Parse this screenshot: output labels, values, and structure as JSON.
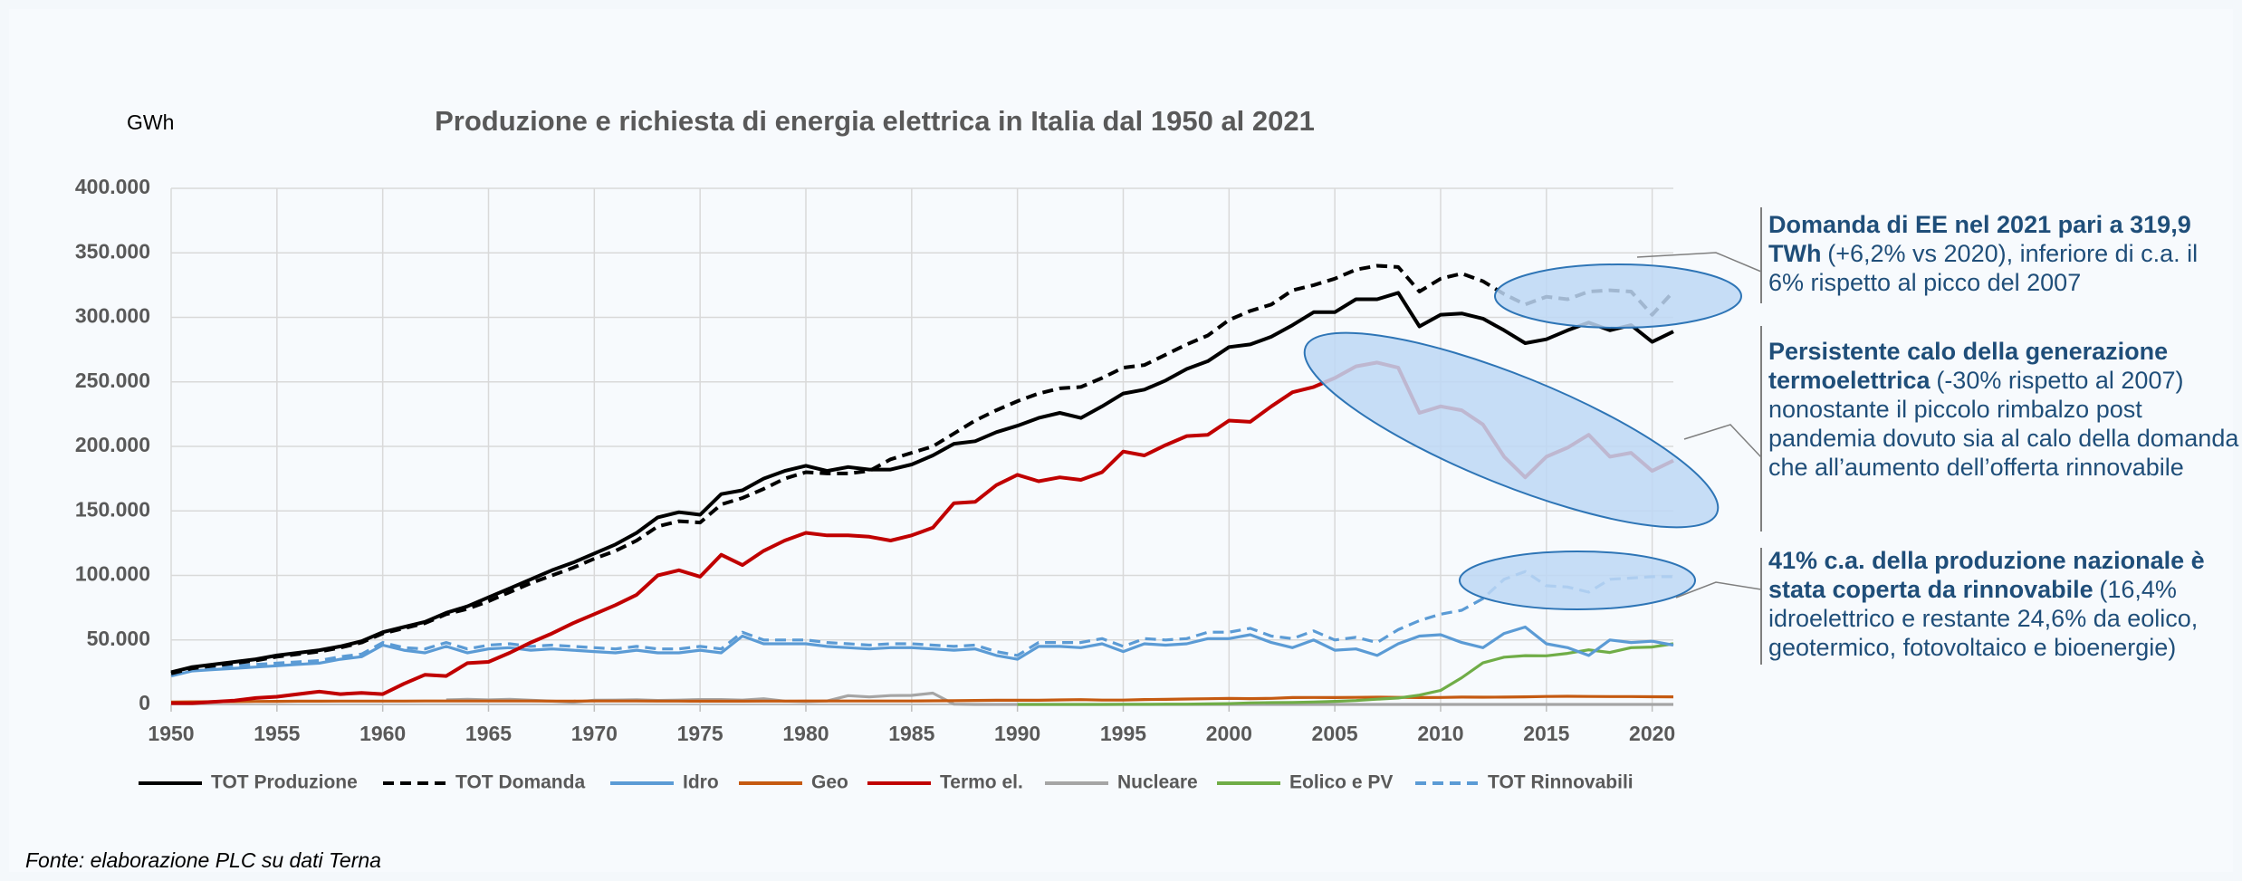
{
  "chart_data": {
    "type": "line",
    "title": "Produzione e richiesta di energia elettrica in Italia dal 1950 al 2021",
    "y_label": "GWh",
    "source": "Fonte: elaborazione PLC su dati Terna",
    "x": [
      1950,
      1951,
      1952,
      1953,
      1954,
      1955,
      1956,
      1957,
      1958,
      1959,
      1960,
      1961,
      1962,
      1963,
      1964,
      1965,
      1966,
      1967,
      1968,
      1969,
      1970,
      1971,
      1972,
      1973,
      1974,
      1975,
      1976,
      1977,
      1978,
      1979,
      1980,
      1981,
      1982,
      1983,
      1984,
      1985,
      1986,
      1987,
      1988,
      1989,
      1990,
      1991,
      1992,
      1993,
      1994,
      1995,
      1996,
      1997,
      1998,
      1999,
      2000,
      2001,
      2002,
      2003,
      2004,
      2005,
      2006,
      2007,
      2008,
      2009,
      2010,
      2011,
      2012,
      2013,
      2014,
      2015,
      2016,
      2017,
      2018,
      2019,
      2020,
      2021
    ],
    "xlim": [
      1950,
      2021
    ],
    "xticks": [
      1950,
      1955,
      1960,
      1965,
      1970,
      1975,
      1980,
      1985,
      1990,
      1995,
      2000,
      2005,
      2010,
      2015,
      2020
    ],
    "ylim": [
      0,
      400000
    ],
    "yticks": [
      0,
      {
        "value": 50000,
        "label": "50.000"
      },
      {
        "value": 100000,
        "label": "100.000"
      },
      {
        "value": 150000,
        "label": "150.000"
      },
      {
        "value": 200000,
        "label": "200.000"
      },
      {
        "value": 250000,
        "label": "250.000"
      },
      {
        "value": 300000,
        "label": "300.000"
      },
      {
        "value": 350000,
        "label": "350.000"
      },
      {
        "value": 400000,
        "label": "400.000"
      }
    ],
    "grid": true,
    "legend": "bottom",
    "series": [
      {
        "name": "TOT Produzione",
        "color": "#000000",
        "dashed": false,
        "values": [
          25000,
          29000,
          31000,
          33000,
          35000,
          38000,
          40000,
          42000,
          45000,
          49000,
          56000,
          60000,
          64000,
          71000,
          76000,
          83000,
          90000,
          97000,
          104000,
          110000,
          117000,
          124000,
          133000,
          145000,
          149000,
          147000,
          163000,
          166000,
          175000,
          181000,
          185000,
          181000,
          184000,
          182000,
          182000,
          186000,
          193000,
          202000,
          204000,
          211000,
          216000,
          222000,
          226000,
          222000,
          231000,
          241000,
          244000,
          251000,
          260000,
          266000,
          277000,
          279000,
          285000,
          294000,
          304000,
          304000,
          314000,
          314000,
          319000,
          293000,
          302000,
          303000,
          299000,
          290000,
          280000,
          283000,
          290000,
          296000,
          290000,
          294000,
          281000,
          289000
        ]
      },
      {
        "name": "TOT Domanda",
        "color": "#000000",
        "dashed": true,
        "values": [
          24000,
          28000,
          30000,
          32000,
          34000,
          37000,
          39000,
          41000,
          44000,
          48000,
          55000,
          59000,
          63000,
          70000,
          74000,
          80000,
          87000,
          94000,
          100000,
          106000,
          113000,
          119000,
          127000,
          138000,
          142000,
          141000,
          155000,
          160000,
          167000,
          175000,
          180000,
          179000,
          179000,
          181000,
          190000,
          195000,
          200000,
          210000,
          220000,
          228000,
          235000,
          241000,
          245000,
          246000,
          253000,
          261000,
          263000,
          271000,
          279000,
          286000,
          298000,
          305000,
          310000,
          321000,
          325000,
          330000,
          337000,
          340000,
          339000,
          320000,
          330000,
          334000,
          328000,
          318000,
          310000,
          316000,
          314000,
          320000,
          321000,
          320000,
          302000,
          320000
        ]
      },
      {
        "name": "Idro",
        "color": "#5b9bd5",
        "dashed": false,
        "values": [
          22000,
          26000,
          27000,
          28000,
          29000,
          30000,
          31000,
          32000,
          35000,
          37000,
          46000,
          42000,
          40000,
          45000,
          40000,
          43000,
          44000,
          42000,
          43000,
          42000,
          41000,
          40000,
          42000,
          40000,
          40000,
          42000,
          40000,
          53000,
          47000,
          47000,
          47000,
          45000,
          44000,
          43000,
          44000,
          44000,
          43000,
          42000,
          43000,
          38000,
          35000,
          45000,
          45000,
          44000,
          47000,
          41000,
          47000,
          46000,
          47000,
          51000,
          51000,
          54000,
          48000,
          44000,
          50000,
          42000,
          43000,
          38000,
          47000,
          53000,
          54000,
          48000,
          44000,
          55000,
          60000,
          47000,
          44000,
          38000,
          50000,
          48000,
          49000,
          46000
        ]
      },
      {
        "name": "Geo",
        "color": "#c55a11",
        "dashed": false,
        "values": [
          1800,
          2000,
          2100,
          2200,
          2300,
          2400,
          2500,
          2500,
          2600,
          2600,
          2600,
          2600,
          2700,
          2700,
          2700,
          2700,
          2700,
          2700,
          2600,
          2600,
          2700,
          2700,
          2700,
          2600,
          2600,
          2500,
          2500,
          2500,
          2600,
          2600,
          2700,
          2700,
          2700,
          2700,
          2700,
          2700,
          2800,
          2900,
          3100,
          3200,
          3200,
          3200,
          3500,
          3700,
          3400,
          3400,
          3800,
          3900,
          4200,
          4400,
          4700,
          4500,
          4700,
          5300,
          5400,
          5300,
          5500,
          5600,
          5500,
          5300,
          5400,
          5700,
          5600,
          5700,
          5900,
          6200,
          6300,
          6200,
          6100,
          6100,
          6000,
          5900
        ]
      },
      {
        "name": "Termo el.",
        "color": "#c00000",
        "dashed": false,
        "values": [
          1000,
          1000,
          2000,
          3000,
          5000,
          6000,
          8000,
          10000,
          8000,
          9000,
          8000,
          16000,
          23000,
          22000,
          32000,
          33000,
          40000,
          48000,
          55000,
          63000,
          70000,
          77000,
          85000,
          100000,
          104000,
          99000,
          116000,
          108000,
          119000,
          127000,
          133000,
          131000,
          131000,
          130000,
          127000,
          131000,
          137000,
          156000,
          157000,
          170000,
          178000,
          173000,
          176000,
          174000,
          180000,
          196000,
          193000,
          201000,
          208000,
          209000,
          220000,
          219000,
          231000,
          242000,
          246000,
          253000,
          262000,
          265000,
          261000,
          226000,
          231000,
          228000,
          217000,
          192000,
          176000,
          192000,
          199000,
          209000,
          192000,
          195000,
          181000,
          189000
        ]
      },
      {
        "name": "Nucleare",
        "color": "#a5a5a5",
        "dashed": false,
        "values": [
          null,
          null,
          null,
          null,
          null,
          null,
          null,
          null,
          null,
          null,
          null,
          null,
          null,
          3500,
          3900,
          3500,
          3900,
          3200,
          2500,
          1700,
          3200,
          3400,
          3600,
          3100,
          3400,
          3800,
          3800,
          3400,
          4400,
          2600,
          2200,
          2700,
          6800,
          5800,
          6900,
          7000,
          8800,
          200,
          0,
          0,
          0,
          0,
          0,
          0,
          0,
          0,
          0,
          0,
          0,
          0,
          0,
          0,
          0,
          0,
          0,
          0,
          0,
          0,
          0,
          0,
          0,
          0,
          0,
          0,
          0,
          0,
          0,
          0,
          0,
          0,
          0,
          0
        ]
      },
      {
        "name": "Eolico e PV",
        "color": "#70ad47",
        "dashed": false,
        "values": [
          null,
          null,
          null,
          null,
          null,
          null,
          null,
          null,
          null,
          null,
          null,
          null,
          null,
          null,
          null,
          null,
          null,
          null,
          null,
          null,
          null,
          null,
          null,
          null,
          null,
          null,
          null,
          null,
          null,
          null,
          null,
          null,
          null,
          null,
          null,
          null,
          null,
          null,
          null,
          null,
          0,
          0,
          0,
          0,
          0,
          100,
          100,
          200,
          200,
          400,
          600,
          1200,
          1400,
          1500,
          1900,
          2400,
          3000,
          4100,
          5000,
          7200,
          10900,
          20700,
          32200,
          36600,
          37800,
          37700,
          39600,
          42300,
          40300,
          44000,
          44500,
          47000
        ]
      },
      {
        "name": "TOT Rinnovabili",
        "color": "#5b9bd5",
        "dashed": true,
        "values": [
          24000,
          28000,
          29000,
          30000,
          31000,
          32000,
          33000,
          34000,
          37000,
          39000,
          48000,
          44000,
          43000,
          48000,
          43000,
          46000,
          47000,
          45000,
          46000,
          45000,
          44000,
          43000,
          45000,
          43000,
          43000,
          45000,
          43000,
          56000,
          50000,
          50000,
          50000,
          48000,
          47000,
          46000,
          47000,
          47000,
          46000,
          45000,
          46000,
          41000,
          38000,
          48000,
          48000,
          48000,
          51000,
          45000,
          51000,
          50000,
          51000,
          56000,
          56000,
          59000,
          53000,
          51000,
          57000,
          50000,
          52000,
          48000,
          58000,
          65000,
          70000,
          73000,
          82000,
          97000,
          103000,
          92000,
          91000,
          87000,
          97000,
          98000,
          99000,
          99000
        ]
      }
    ],
    "annotations": [
      {
        "bold": "Domanda di EE nel 2021 pari a 319,9 TWh",
        "text": "(+6,2% vs 2020), inferiore di c.a. il 6% rispetto al picco del 2007"
      },
      {
        "bold": "Persistente calo della generazione termoelettrica",
        "text": "(-30% rispetto al 2007) nonostante il piccolo rimbalzo post pandemia dovuto sia al calo della domanda che all’aumento dell’offerta rinnovabile"
      },
      {
        "bold": "41% c.a. della produzione nazionale è stata coperta da rinnovabile",
        "text": "(16,4% idroelettrico e restante 24,6% da eolico, geotermico, fotovoltaico e bioenergie)"
      }
    ]
  }
}
